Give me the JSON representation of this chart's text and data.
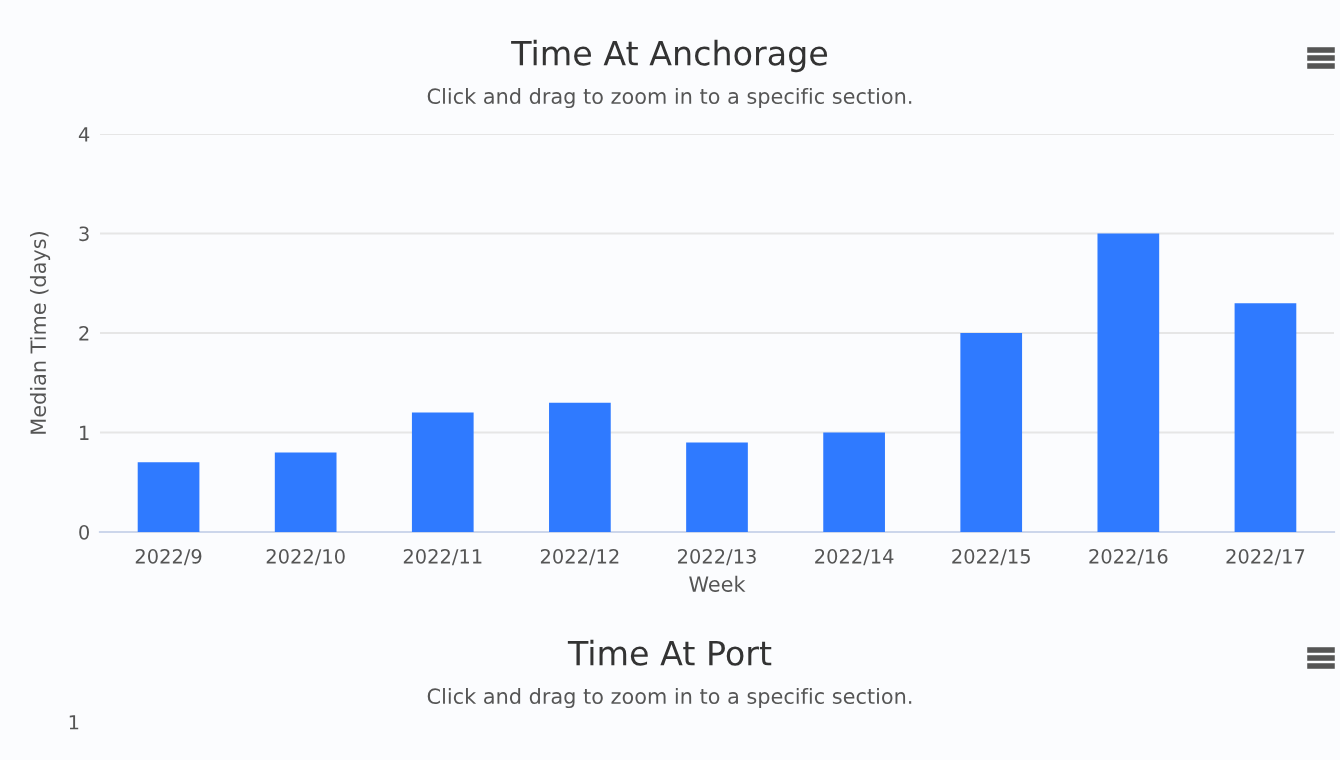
{
  "chart_data": [
    {
      "type": "bar",
      "title": "Time At Anchorage",
      "subtitle": "Click and drag to zoom in to a specific section.",
      "xlabel": "Week",
      "ylabel": "Median Time (days)",
      "categories": [
        "2022/9",
        "2022/10",
        "2022/11",
        "2022/12",
        "2022/13",
        "2022/14",
        "2022/15",
        "2022/16",
        "2022/17"
      ],
      "values": [
        0.7,
        0.8,
        1.2,
        1.3,
        0.9,
        1.0,
        2.0,
        3.0,
        2.3
      ],
      "color": "#2f7aff",
      "ylim": [
        0,
        4
      ],
      "yticks": [
        0,
        1,
        2,
        3,
        4
      ],
      "grid": "y"
    },
    {
      "type": "other",
      "title": "Time At Port",
      "subtitle": "Click and drag to zoom in to a specific section.",
      "annotations": [
        "1"
      ]
    }
  ]
}
